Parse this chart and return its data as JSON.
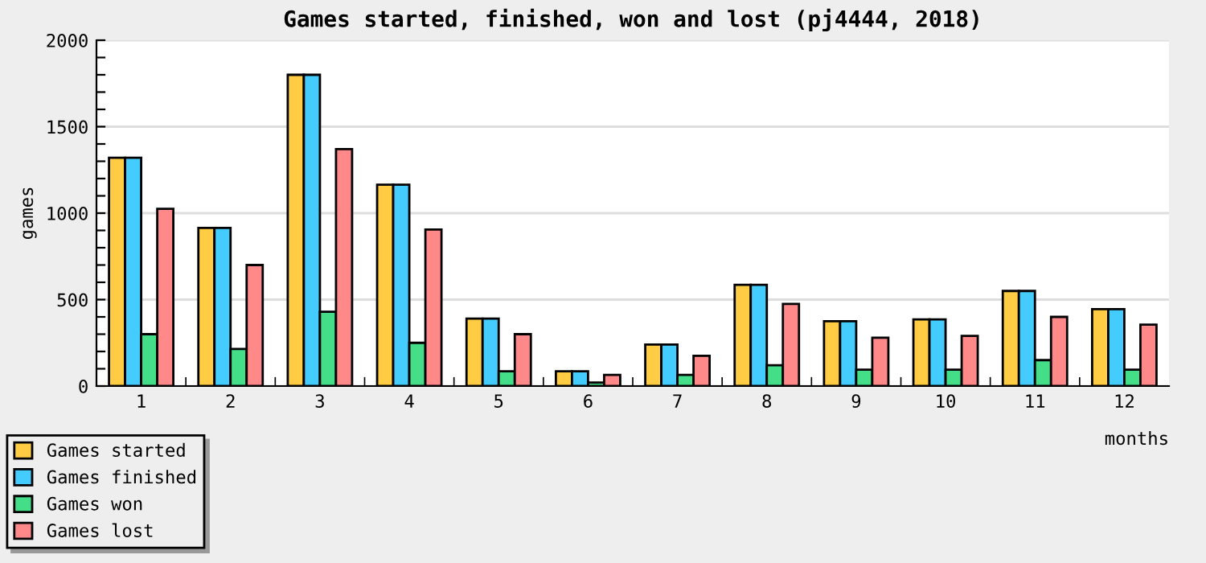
{
  "chart_data": {
    "type": "bar",
    "title": "Games started, finished, won and lost (pj4444, 2018)",
    "xlabel": "months",
    "ylabel": "games",
    "categories": [
      "1",
      "2",
      "3",
      "4",
      "5",
      "6",
      "7",
      "8",
      "9",
      "10",
      "11",
      "12"
    ],
    "series": [
      {
        "name": "Games started",
        "color": "#ffcc44",
        "values": [
          1320,
          915,
          1800,
          1165,
          390,
          85,
          240,
          585,
          375,
          385,
          550,
          445
        ]
      },
      {
        "name": "Games finished",
        "color": "#44ccff",
        "values": [
          1320,
          915,
          1800,
          1165,
          390,
          85,
          240,
          585,
          375,
          385,
          550,
          445
        ]
      },
      {
        "name": "Games won",
        "color": "#44dd88",
        "values": [
          300,
          215,
          430,
          250,
          85,
          20,
          65,
          120,
          95,
          95,
          150,
          95
        ]
      },
      {
        "name": "Games lost",
        "color": "#ff8888",
        "values": [
          1025,
          700,
          1370,
          905,
          300,
          65,
          175,
          475,
          280,
          290,
          400,
          355
        ]
      }
    ],
    "ylim": [
      0,
      2000
    ],
    "yticks": [
      0,
      {
        "value": 100,
        "label": null
      },
      {
        "value": 200,
        "label": null
      },
      {
        "value": 300,
        "label": null
      },
      {
        "value": 400,
        "label": null
      },
      500,
      {
        "value": 600,
        "label": null
      },
      {
        "value": 700,
        "label": null
      },
      {
        "value": 800,
        "label": null
      },
      {
        "value": 900,
        "label": null
      },
      1000,
      {
        "value": 1100,
        "label": null
      },
      {
        "value": 1200,
        "label": null
      },
      {
        "value": 1300,
        "label": null
      },
      {
        "value": 1400,
        "label": null
      },
      1500,
      {
        "value": 1600,
        "label": null
      },
      {
        "value": 1700,
        "label": null
      },
      {
        "value": 1800,
        "label": null
      },
      {
        "value": 1900,
        "label": null
      },
      2000
    ],
    "grid": "y",
    "legend": "bottom left"
  }
}
